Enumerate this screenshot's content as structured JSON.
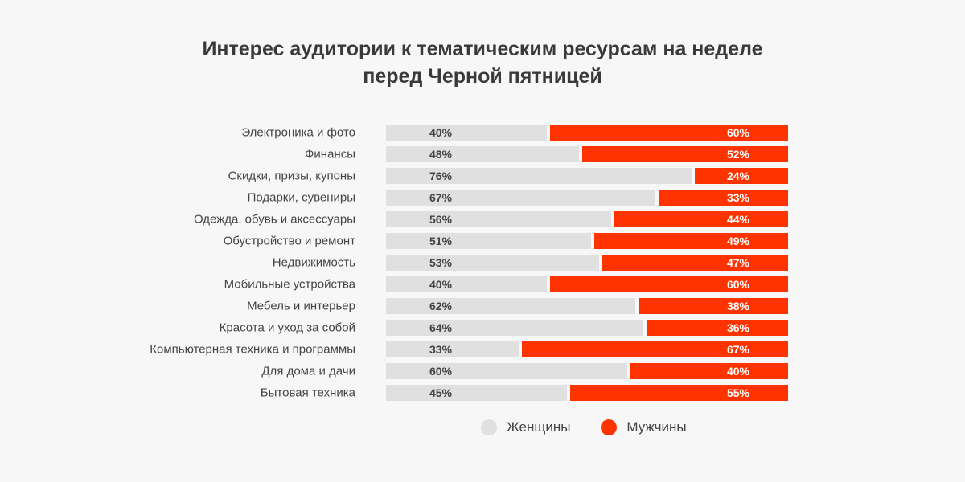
{
  "title": {
    "line1": "Интерес аудитории к тематическим ресурсам на неделе",
    "line2": "перед Черной пятницей"
  },
  "colors": {
    "women": "#e0e0e0",
    "men": "#ff3300",
    "women_label": "#444444",
    "men_label": "#ffffff",
    "category_text": "#444444",
    "background": "#f7f7f7"
  },
  "legend": {
    "women": "Женщины",
    "men": "Мужчины"
  },
  "chart_data": {
    "type": "bar",
    "orientation": "horizontal",
    "stacked": true,
    "percent_stacked": true,
    "title": "Интерес аудитории к тематическим ресурсам на неделе перед Черной пятницей",
    "xlim": [
      0,
      100
    ],
    "grid": false,
    "legend_position": "bottom",
    "categories": [
      "Электроника и фото",
      "Финансы",
      "Скидки, призы, купоны",
      "Подарки, сувениры",
      "Одежда, обувь и аксессуары",
      "Обустройство и ремонт",
      "Недвижимость",
      "Мобильные устройства",
      "Мебель и интерьер",
      "Красота и уход за собой",
      "Компьютерная техника и программы",
      "Для дома и дачи",
      "Бытовая техника"
    ],
    "series": [
      {
        "name": "Женщины",
        "values": [
          40,
          48,
          76,
          67,
          56,
          51,
          53,
          40,
          62,
          64,
          33,
          60,
          45
        ],
        "labels": [
          "40%",
          "48%",
          "76%",
          "67%",
          "56%",
          "51%",
          "53%",
          "40%",
          "62%",
          "64%",
          "33%",
          "60%",
          "45%"
        ]
      },
      {
        "name": "Мужчины",
        "values": [
          60,
          52,
          24,
          33,
          44,
          49,
          47,
          60,
          38,
          36,
          67,
          40,
          55
        ],
        "labels": [
          "60%",
          "52%",
          "24%",
          "33%",
          "44%",
          "49%",
          "47%",
          "60%",
          "38%",
          "36%",
          "67%",
          "40%",
          "55%"
        ]
      }
    ]
  }
}
